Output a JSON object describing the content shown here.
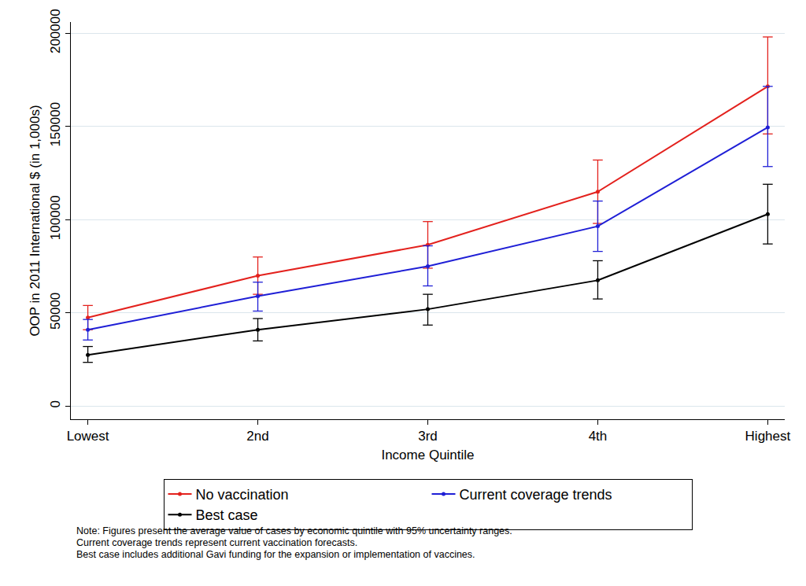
{
  "chart_data": {
    "type": "line",
    "x_label": "Income Quintile",
    "y_label": "OOP in 2011 International $ (in 1,000s)",
    "categories": [
      "Lowest",
      "2nd",
      "3rd",
      "4th",
      "Highest"
    ],
    "series": [
      {
        "name": "No vaccination",
        "color": "#e3211d",
        "marker": "circle",
        "values": [
          47500,
          70000,
          86500,
          115000,
          171500
        ],
        "lower": [
          41000,
          60000,
          74000,
          98000,
          146000
        ],
        "upper": [
          54000,
          80000,
          99000,
          132000,
          198000
        ]
      },
      {
        "name": "Current coverage trends",
        "color": "#1f1fd6",
        "marker": "circle",
        "values": [
          41000,
          59000,
          75000,
          96500,
          149500
        ],
        "lower": [
          35500,
          51000,
          64500,
          83000,
          128500
        ],
        "upper": [
          46500,
          66500,
          86000,
          110000,
          171500
        ]
      },
      {
        "name": "Best case",
        "color": "#000000",
        "marker": "circle",
        "values": [
          27500,
          41000,
          52000,
          67500,
          103000
        ],
        "lower": [
          23500,
          35000,
          43500,
          57500,
          87000
        ],
        "upper": [
          32000,
          47000,
          60000,
          78000,
          119000
        ]
      }
    ],
    "ylim": [
      -7000,
      206000
    ],
    "yticks": [
      0,
      50000,
      100000,
      150000,
      200000
    ],
    "grid": true,
    "legend": "bottom",
    "annotations": [
      "Note: Figures present the average value of cases by economic quintile with 95% uncertainty ranges.",
      "Current coverage trends represent current vaccination forecasts.",
      "Best case includes additional Gavi funding for the expansion or implementation of vaccines."
    ]
  }
}
